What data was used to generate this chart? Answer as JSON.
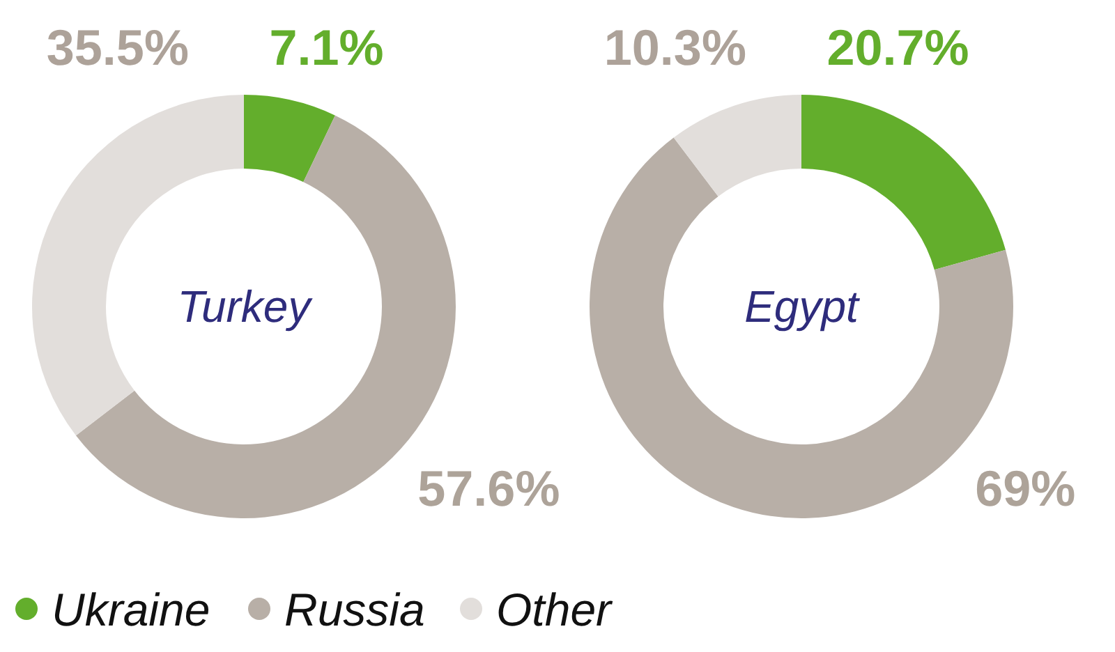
{
  "chart_data": {
    "type": "donut",
    "categories": [
      "Ukraine",
      "Russia",
      "Other"
    ],
    "colors": [
      "#63ae2c",
      "#b8afa7",
      "#e2dedb"
    ],
    "series": [
      {
        "name": "Turkey",
        "values": [
          7.1,
          57.6,
          35.5
        ],
        "value_labels": [
          "7.1%",
          "57.6%",
          "35.5%"
        ]
      },
      {
        "name": "Egypt",
        "values": [
          20.7,
          69,
          10.3
        ],
        "value_labels": [
          "20.7%",
          "69%",
          "10.3%"
        ]
      }
    ],
    "legend": "bottom left"
  }
}
